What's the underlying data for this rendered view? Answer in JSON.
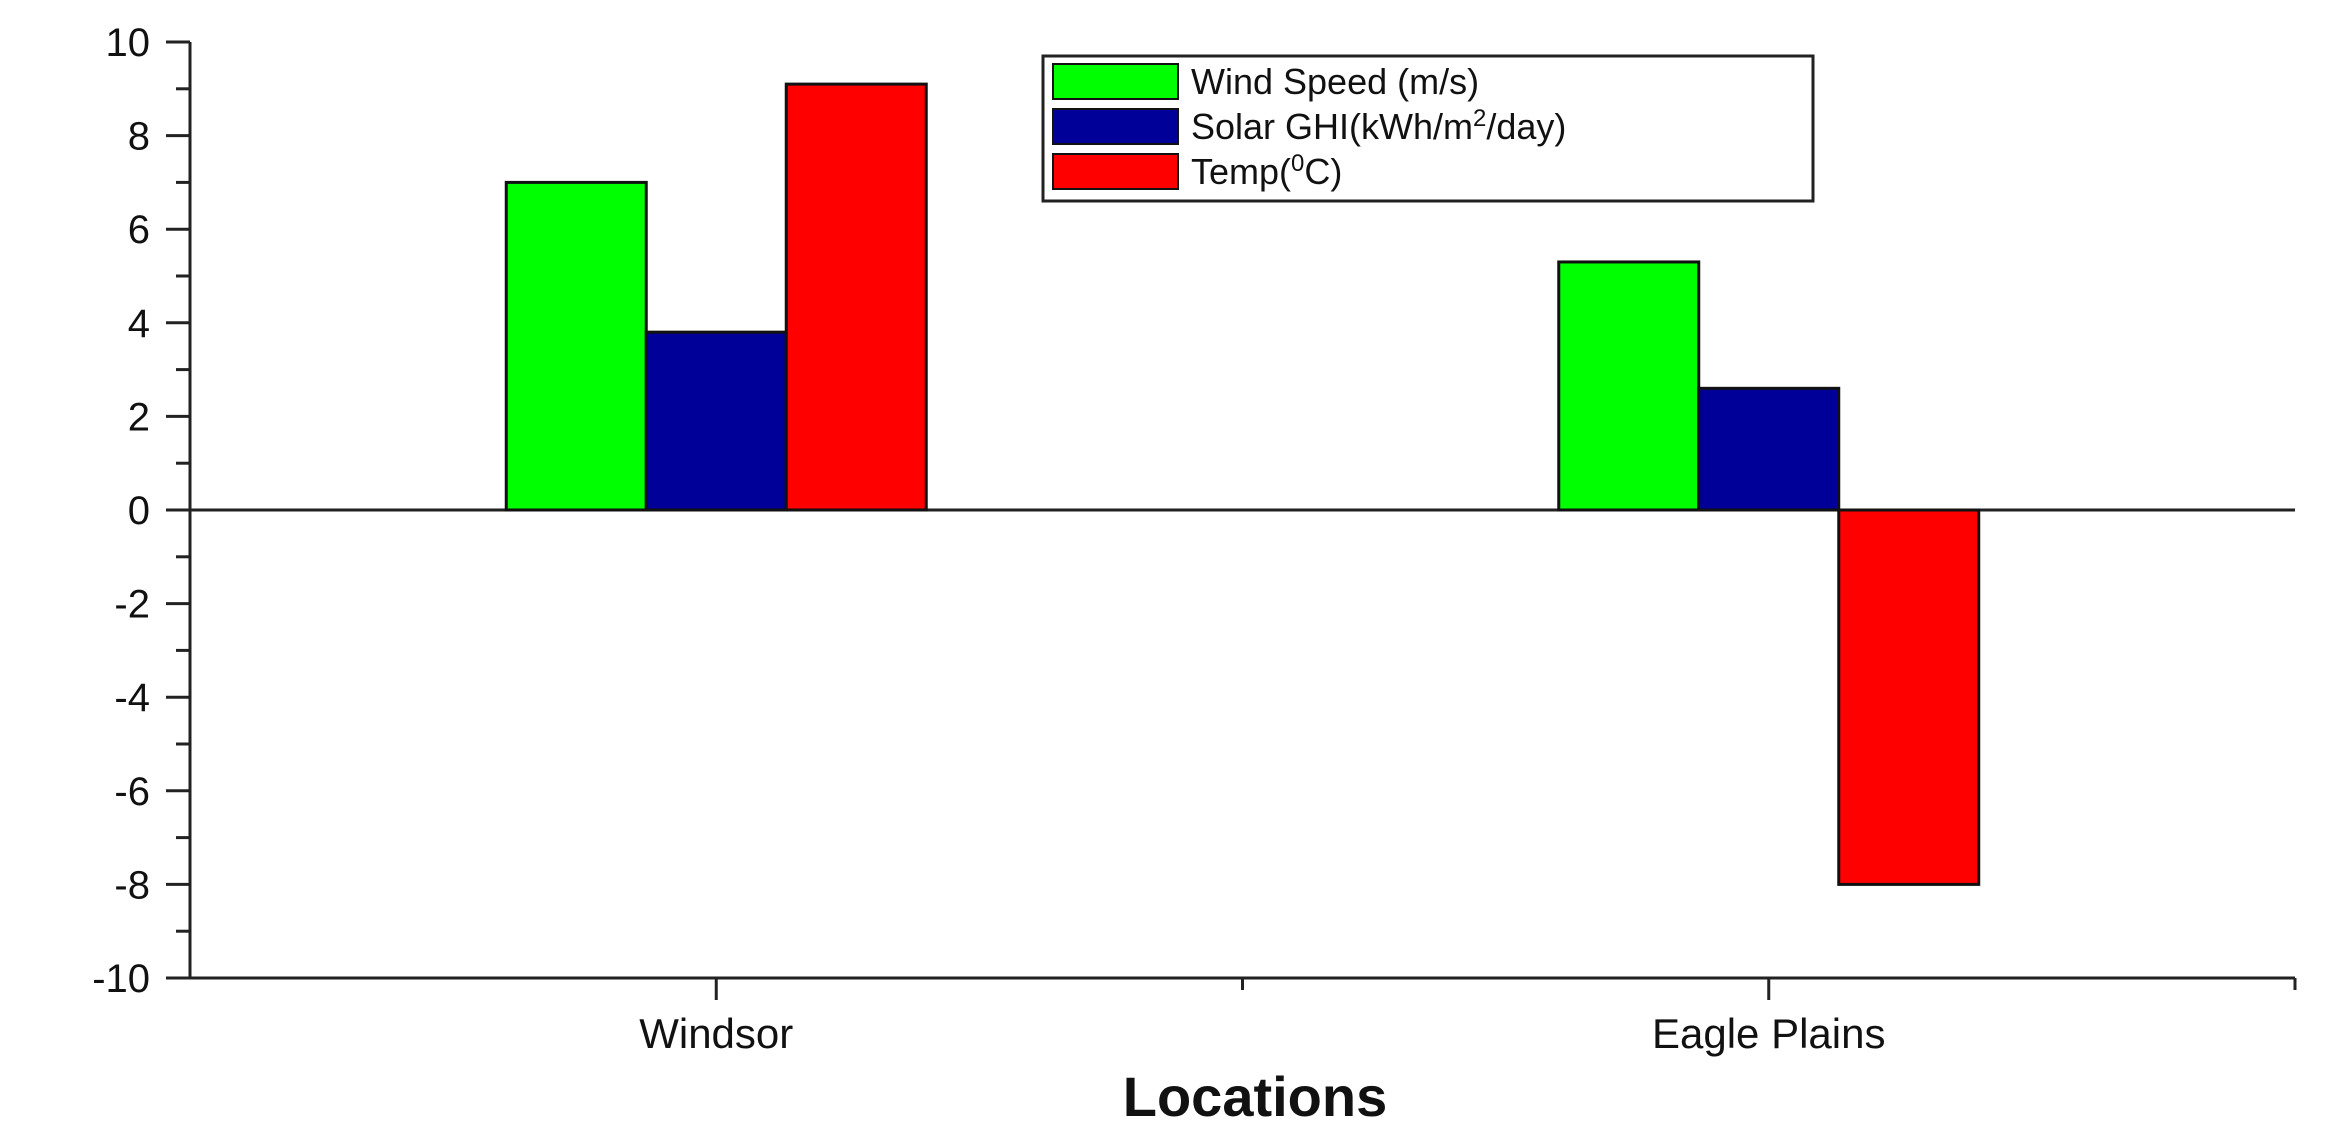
{
  "chart_data": {
    "type": "bar",
    "categories": [
      "Windsor",
      "Eagle Plains"
    ],
    "series": [
      {
        "name": "Wind Speed (m/s)",
        "name_parts": [
          "Wind Speed (m/s)",
          "",
          ""
        ],
        "values": [
          7.0,
          5.3
        ],
        "color": "#00ff00"
      },
      {
        "name": "Solar GHI(kWh/m2/day)",
        "name_parts": [
          "Solar GHI(kWh/m",
          "2",
          "/day)"
        ],
        "values": [
          3.8,
          2.6
        ],
        "color": "#000099"
      },
      {
        "name": "Temp(0C)",
        "name_parts": [
          "Temp(",
          "0",
          "C)"
        ],
        "values": [
          9.1,
          -8.0
        ],
        "color": "#ff0000"
      }
    ],
    "xlabel": "Locations",
    "ylabel": "",
    "ylim": [
      -10,
      10
    ],
    "yticks": [
      -10,
      -8,
      -6,
      -4,
      -2,
      0,
      2,
      4,
      6,
      8,
      10
    ],
    "grid": false,
    "legend_position": "top"
  }
}
